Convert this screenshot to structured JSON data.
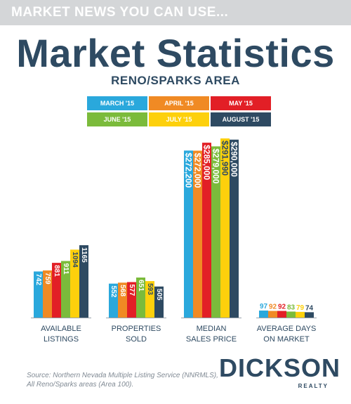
{
  "banner": "MARKET NEWS YOU CAN USE...",
  "title": "Market Statistics",
  "subtitle": "RENO/SPARKS AREA",
  "source_lines": [
    "Source: Northern Nevada Multiple Listing Service (NNRMLS),",
    "All Reno/Sparks areas (Area 100)."
  ],
  "logo": {
    "main": "DICKSON",
    "sub": "REALTY"
  },
  "colors": {
    "March '15": "#2aa8dc",
    "April '15": "#f08a24",
    "May '15": "#e21f26",
    "June '15": "#7bbb3b",
    "July '15": "#fdd00c",
    "August '15": "#2e4a62"
  },
  "chart_data": {
    "type": "bar",
    "series_names": [
      "MARCH '15",
      "APRIL '15",
      "MAY '15",
      "JUNE '15",
      "JULY '15",
      "AUGUST '15"
    ],
    "series_colors": [
      "#2aa8dc",
      "#f08a24",
      "#e21f26",
      "#7bbb3b",
      "#fdd00c",
      "#2e4a62"
    ],
    "groups": [
      {
        "label": [
          "AVAILABLE",
          "LISTINGS"
        ],
        "values": [
          742,
          759,
          881,
          911,
          1094,
          1165
        ],
        "value_labels": [
          "742",
          "759",
          "881",
          "911",
          "1094",
          "1165"
        ]
      },
      {
        "label": [
          "PROPERTIES",
          "SOLD"
        ],
        "values": [
          552,
          568,
          577,
          651,
          593,
          505
        ],
        "value_labels": [
          "552",
          "568",
          "577",
          "651",
          "593",
          "505"
        ]
      },
      {
        "label": [
          "MEDIAN",
          "SALES PRICE"
        ],
        "values": [
          272200,
          272000,
          285000,
          279000,
          291990,
          290000
        ],
        "value_labels": [
          "$272,200",
          "$272,000",
          "$285,000",
          "$279,000",
          "$291,990",
          "$290,000"
        ]
      },
      {
        "label": [
          "AVERAGE DAYS",
          "ON MARKET"
        ],
        "values": [
          97,
          92,
          92,
          83,
          79,
          74
        ],
        "value_labels": [
          "97",
          "92",
          "92",
          "83",
          "79",
          "74"
        ]
      }
    ]
  }
}
